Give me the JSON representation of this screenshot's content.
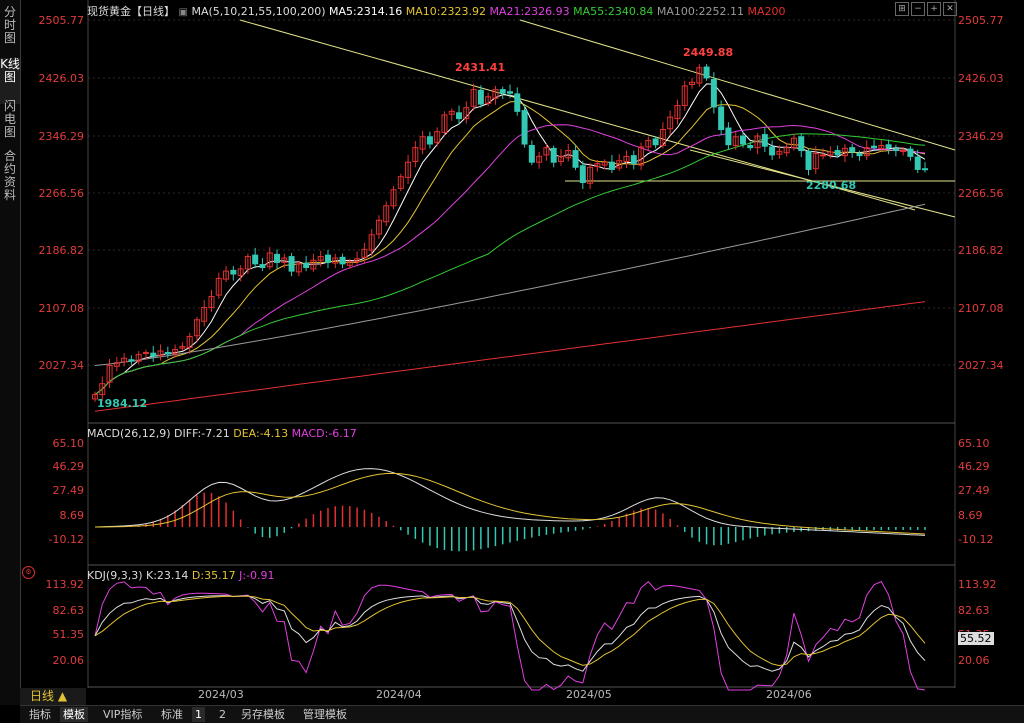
{
  "sidebar": {
    "tabs": [
      "分时图",
      "K线图",
      "闪电图",
      "合约资料"
    ]
  },
  "header": {
    "title": "现货黄金【日线】",
    "ma_params": "MA(5,10,21,55,100,200)",
    "ma": [
      {
        "label": "MA5:2314.16",
        "color": "#ffffff"
      },
      {
        "label": "MA10:2323.92",
        "color": "#e3c333"
      },
      {
        "label": "MA21:2326.93",
        "color": "#e040e0"
      },
      {
        "label": "MA55:2340.84",
        "color": "#33cc33"
      },
      {
        "label": "MA100:2252.11",
        "color": "#999999"
      },
      {
        "label": "MA200",
        "color": "#e23030"
      }
    ]
  },
  "price_axis": {
    "ticks": [
      "2505.77",
      "2426.03",
      "2346.29",
      "2266.56",
      "2186.82",
      "2107.08",
      "2027.34"
    ],
    "min": 1955,
    "max": 2505.77
  },
  "annotations": {
    "high1": "2431.41",
    "high2": "2449.88",
    "low1": "2280.68",
    "low0": "1984.12"
  },
  "macd": {
    "title": "MACD(26,12,9)",
    "diff": "DIFF:-7.21",
    "dea": "DEA:-4.13",
    "macd": "MACD:-6.17",
    "ticks": [
      "65.10",
      "46.29",
      "27.49",
      "8.69",
      "-10.12"
    ]
  },
  "kdj": {
    "title": "KDJ(9,3,3)",
    "k": "K:23.14",
    "d": "D:35.17",
    "j": "J:-0.91",
    "ticks": [
      "113.92",
      "82.63",
      "51.35",
      "20.06"
    ],
    "marker": "55.52"
  },
  "x_axis": {
    "labels": [
      "2024/03",
      "2024/04",
      "2024/05",
      "2024/06"
    ]
  },
  "bottom": {
    "period": "日线 ▲",
    "tabs": [
      "指标",
      "模板",
      "VIP指标",
      "标准",
      "1",
      "2",
      "另存模板",
      "管理模板"
    ]
  },
  "colors": {
    "up": "#e23030",
    "down": "#32c8b4",
    "trend": "#e3e38a"
  },
  "chart_data": {
    "type": "candlestick",
    "title": "现货黄金【日线】",
    "x_labels": [
      "2024/03",
      "2024/04",
      "2024/05",
      "2024/06"
    ],
    "closes": [
      1990,
      2005,
      2030,
      2034,
      2040,
      2036,
      2045,
      2048,
      2043,
      2050,
      2046,
      2052,
      2056,
      2070,
      2093,
      2110,
      2125,
      2150,
      2160,
      2156,
      2163,
      2180,
      2170,
      2165,
      2185,
      2172,
      2178,
      2160,
      2170,
      2165,
      2175,
      2180,
      2172,
      2178,
      2170,
      2173,
      2177,
      2190,
      2210,
      2230,
      2250,
      2272,
      2290,
      2310,
      2330,
      2345,
      2335,
      2352,
      2375,
      2380,
      2370,
      2385,
      2410,
      2390,
      2400,
      2410,
      2405,
      2405,
      2380,
      2335,
      2310,
      2318,
      2330,
      2310,
      2318,
      2326,
      2303,
      2282,
      2303,
      2308,
      2310,
      2300,
      2312,
      2318,
      2308,
      2331,
      2340,
      2334,
      2355,
      2372,
      2388,
      2415,
      2420,
      2440,
      2426,
      2386,
      2355,
      2334,
      2345,
      2335,
      2330,
      2346,
      2332,
      2320,
      2325,
      2330,
      2343,
      2326,
      2300,
      2322,
      2320,
      2324,
      2320,
      2329,
      2324,
      2319,
      2330,
      2330,
      2333,
      2330,
      2326,
      2326,
      2318,
      2300,
      2300
    ]
  }
}
